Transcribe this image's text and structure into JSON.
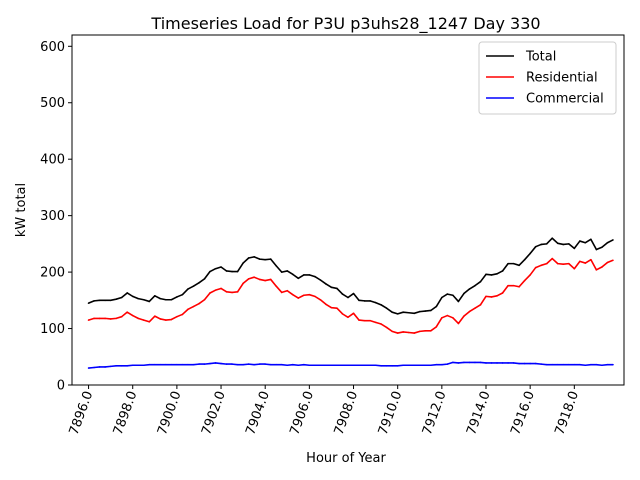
{
  "chart_data": {
    "type": "line",
    "title": "Timeseries Load for P3U p3uhs28_1247  Day 330",
    "xlabel": "Hour of Year",
    "ylabel": "kW total",
    "xlim": [
      7895.25,
      7920.25
    ],
    "ylim": [
      0,
      620
    ],
    "x_ticks": [
      7896,
      7898,
      7900,
      7902,
      7904,
      7906,
      7908,
      7910,
      7912,
      7914,
      7916,
      7918
    ],
    "x_tick_labels": [
      "7896.0",
      "7898.0",
      "7900.0",
      "7902.0",
      "7904.0",
      "7906.0",
      "7908.0",
      "7910.0",
      "7912.0",
      "7914.0",
      "7916.0",
      "7918.0"
    ],
    "y_ticks": [
      0,
      100,
      200,
      300,
      400,
      500,
      600
    ],
    "y_tick_labels": [
      "0",
      "100",
      "200",
      "300",
      "400",
      "500",
      "600"
    ],
    "grid": false,
    "legend_position": "top-right",
    "x": [
      7896,
      7896.25,
      7896.5,
      7896.75,
      7897,
      7897.25,
      7897.5,
      7897.75,
      7898,
      7898.25,
      7898.5,
      7898.75,
      7899,
      7899.25,
      7899.5,
      7899.75,
      7900,
      7900.25,
      7900.5,
      7900.75,
      7901,
      7901.25,
      7901.5,
      7901.75,
      7902,
      7902.25,
      7902.5,
      7902.75,
      7903,
      7903.25,
      7903.5,
      7903.75,
      7904,
      7904.25,
      7904.5,
      7904.75,
      7905,
      7905.25,
      7905.5,
      7905.75,
      7906,
      7906.25,
      7906.5,
      7906.75,
      7907,
      7907.25,
      7907.5,
      7907.75,
      7908,
      7908.25,
      7908.5,
      7908.75,
      7909,
      7909.25,
      7909.5,
      7909.75,
      7910,
      7910.25,
      7910.5,
      7910.75,
      7911,
      7911.25,
      7911.5,
      7911.75,
      7912,
      7912.25,
      7912.5,
      7912.75,
      7913,
      7913.25,
      7913.5,
      7913.75,
      7914,
      7914.25,
      7914.5,
      7914.75,
      7915,
      7915.25,
      7915.5,
      7915.75,
      7916,
      7916.25,
      7916.5,
      7916.75,
      7917,
      7917.25,
      7917.5,
      7917.75,
      7918,
      7918.25,
      7918.5,
      7918.75,
      7919,
      7919.25,
      7919.5,
      7919.75
    ],
    "series": [
      {
        "name": "Total",
        "color": "#000000",
        "values": [
          145,
          149,
          150,
          150,
          150,
          152,
          155,
          163,
          157,
          153,
          151,
          148,
          158,
          153,
          151,
          151,
          156,
          160,
          170,
          175,
          181,
          188,
          201,
          206,
          209,
          202,
          201,
          201,
          216,
          225,
          227,
          223,
          222,
          223,
          211,
          200,
          202,
          196,
          189,
          195,
          195,
          192,
          186,
          179,
          173,
          171,
          161,
          155,
          162,
          150,
          149,
          149,
          146,
          142,
          136,
          129,
          126,
          129,
          128,
          127,
          130,
          131,
          132,
          139,
          155,
          161,
          159,
          148,
          162,
          170,
          176,
          183,
          196,
          195,
          197,
          202,
          215,
          215,
          212,
          222,
          233,
          245,
          249,
          250,
          260,
          251,
          249,
          250,
          242,
          255,
          252,
          258,
          240,
          244,
          252,
          257
        ]
      },
      {
        "name": "Residential",
        "color": "#ff0000",
        "values": [
          115,
          118,
          118,
          118,
          117,
          118,
          121,
          129,
          123,
          118,
          115,
          112,
          122,
          117,
          115,
          116,
          121,
          125,
          134,
          139,
          144,
          151,
          163,
          168,
          171,
          165,
          164,
          165,
          180,
          188,
          191,
          187,
          185,
          187,
          175,
          164,
          167,
          160,
          154,
          159,
          160,
          157,
          151,
          143,
          137,
          136,
          126,
          120,
          127,
          115,
          114,
          114,
          111,
          108,
          102,
          95,
          92,
          94,
          93,
          92,
          95,
          96,
          96,
          103,
          119,
          123,
          119,
          109,
          122,
          130,
          136,
          142,
          157,
          156,
          158,
          163,
          176,
          176,
          174,
          185,
          195,
          208,
          212,
          215,
          224,
          215,
          214,
          215,
          206,
          219,
          216,
          222,
          204,
          209,
          217,
          221
        ]
      },
      {
        "name": "Commercial",
        "color": "#0000ff",
        "values": [
          30,
          31,
          32,
          32,
          33,
          34,
          34,
          34,
          35,
          35,
          35,
          36,
          36,
          36,
          36,
          36,
          36,
          36,
          36,
          36,
          37,
          37,
          38,
          39,
          38,
          37,
          37,
          36,
          36,
          37,
          36,
          37,
          37,
          36,
          36,
          36,
          35,
          36,
          35,
          36,
          35,
          35,
          35,
          35,
          35,
          35,
          35,
          35,
          35,
          35,
          35,
          35,
          35,
          34,
          34,
          34,
          34,
          35,
          35,
          35,
          35,
          35,
          35,
          36,
          36,
          37,
          40,
          39,
          40,
          40,
          40,
          40,
          39,
          39,
          39,
          39,
          39,
          39,
          38,
          38,
          38,
          38,
          37,
          36,
          36,
          36,
          36,
          36,
          36,
          36,
          35,
          36,
          36,
          35,
          36,
          36
        ]
      }
    ]
  }
}
